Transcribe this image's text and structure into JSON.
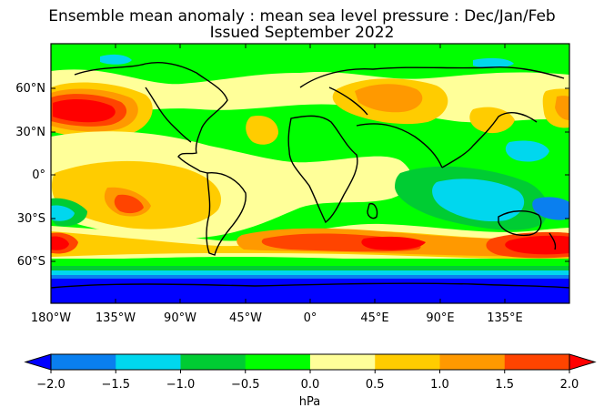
{
  "title": {
    "line1": "Ensemble mean anomaly : mean sea level pressure : Dec/Jan/Feb",
    "line2": "Issued September 2022"
  },
  "map": {
    "lat_labels": [
      "60°N",
      "30°N",
      "0°",
      "30°S",
      "60°S"
    ],
    "lon_labels": [
      "180°W",
      "135°W",
      "90°W",
      "45°W",
      "0°",
      "45°E",
      "90°E",
      "135°E"
    ],
    "colors": {
      "ocean_base": "#00ff00",
      "coast": "#000000"
    }
  },
  "colorbar": {
    "unit": "hPa",
    "tick_labels": [
      "−2.0",
      "−1.5",
      "−1.0",
      "−0.5",
      "0.0",
      "0.5",
      "1.0",
      "1.5",
      "2.0"
    ],
    "levels": [
      -2.0,
      -1.5,
      -1.0,
      -0.5,
      0.0,
      0.5,
      1.0,
      1.5,
      2.0
    ],
    "colors": [
      "#0000ff",
      "#0a7fef",
      "#00d7ee",
      "#00cc33",
      "#00ff00",
      "#ffff99",
      "#ffcc00",
      "#ff9900",
      "#ff4400",
      "#ff0000"
    ]
  }
}
